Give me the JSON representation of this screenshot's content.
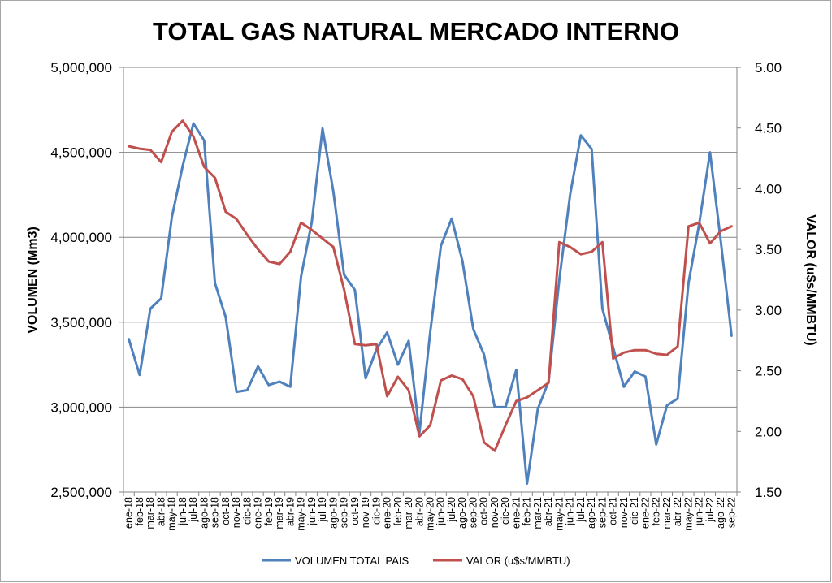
{
  "chart_data": {
    "type": "line",
    "title": "TOTAL GAS NATURAL MERCADO INTERNO",
    "xlabel": "",
    "ylabel_left": "VOLUMEN (Mm3)",
    "ylabel_right": "VALOR (u$s/MMBTU)",
    "y_left_ticks": [
      "2,500,000",
      "3,000,000",
      "3,500,000",
      "4,000,000",
      "4,500,000",
      "5,000,000"
    ],
    "y_right_ticks": [
      "1.50",
      "2.00",
      "2.50",
      "3.00",
      "3.50",
      "4.00",
      "4.50",
      "5.00"
    ],
    "ylim_left": [
      2500000,
      5000000
    ],
    "ylim_right": [
      1.5,
      5.0
    ],
    "grid": true,
    "legend_position": "bottom",
    "categories": [
      "ene-18",
      "feb-18",
      "mar-18",
      "abr-18",
      "may-18",
      "jun-18",
      "jul-18",
      "ago-18",
      "sep-18",
      "oct-18",
      "nov-18",
      "dic-18",
      "ene-19",
      "feb-19",
      "mar-19",
      "abr-19",
      "may-19",
      "jun-19",
      "jul-19",
      "ago-19",
      "sep-19",
      "oct-19",
      "nov-19",
      "dic-19",
      "ene-20",
      "feb-20",
      "mar-20",
      "abr-20",
      "may-20",
      "jun-20",
      "jul-20",
      "ago-20",
      "sep-20",
      "oct-20",
      "nov-20",
      "dic-20",
      "ene-21",
      "feb-21",
      "mar-21",
      "abr-21",
      "may-21",
      "jun-21",
      "jul-21",
      "ago-21",
      "sep-21",
      "oct-21",
      "nov-21",
      "dic-21",
      "ene-22",
      "feb-22",
      "mar-22",
      "abr-22",
      "may-22",
      "jun-22",
      "jul-22",
      "ago-22",
      "sep-22"
    ],
    "series": [
      {
        "name": "VOLUMEN TOTAL PAIS",
        "axis": "left",
        "color": "#4f81bd",
        "values": [
          3400000,
          3190000,
          3580000,
          3640000,
          4120000,
          4420000,
          4670000,
          4570000,
          3730000,
          3530000,
          3090000,
          3100000,
          3240000,
          3130000,
          3150000,
          3120000,
          3770000,
          4090000,
          4640000,
          4270000,
          3780000,
          3690000,
          3170000,
          3340000,
          3440000,
          3250000,
          3390000,
          2850000,
          3440000,
          3950000,
          4110000,
          3860000,
          3460000,
          3310000,
          3000000,
          3000000,
          3220000,
          2550000,
          2990000,
          3150000,
          3750000,
          4250000,
          4600000,
          4520000,
          3580000,
          3350000,
          3120000,
          3210000,
          3180000,
          2780000,
          3010000,
          3050000,
          3730000,
          4080000,
          4500000,
          3980000,
          3420000
        ]
      },
      {
        "name": "VALOR (u$s/MMBTU)",
        "axis": "right",
        "color": "#c0504d",
        "values": [
          4.35,
          4.33,
          4.32,
          4.22,
          4.47,
          4.56,
          4.43,
          4.18,
          4.09,
          3.81,
          3.75,
          3.62,
          3.5,
          3.4,
          3.38,
          3.48,
          3.72,
          3.66,
          3.59,
          3.52,
          3.17,
          2.72,
          2.71,
          2.72,
          2.29,
          2.45,
          2.34,
          1.96,
          2.05,
          2.42,
          2.46,
          2.43,
          2.29,
          1.91,
          1.84,
          2.05,
          2.25,
          2.28,
          2.34,
          2.4,
          3.56,
          3.52,
          3.46,
          3.48,
          3.56,
          2.6,
          2.65,
          2.67,
          2.67,
          2.64,
          2.63,
          2.7,
          3.69,
          3.72,
          3.55,
          3.65,
          3.69
        ]
      }
    ]
  }
}
